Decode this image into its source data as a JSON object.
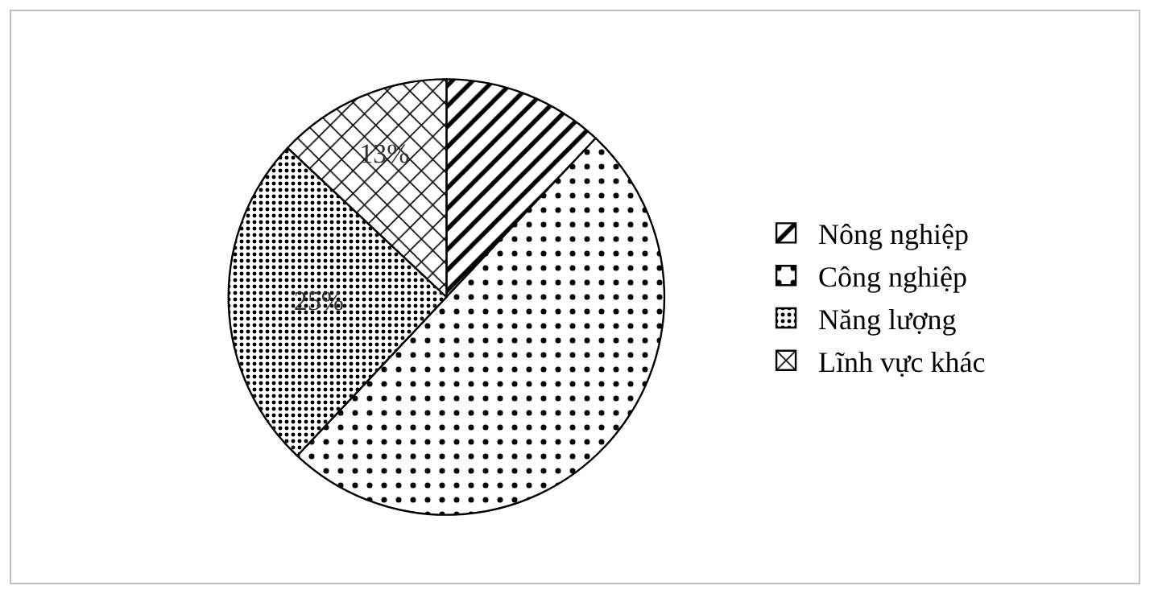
{
  "chart_data": {
    "type": "pie",
    "categories": [
      "Nông nghiệp",
      "Công nghiệp",
      "Năng lượng",
      "Lĩnh vực khác"
    ],
    "values": [
      12,
      50,
      25,
      13
    ],
    "value_labels": [
      null,
      null,
      "25%",
      "13%"
    ],
    "colors": [
      "#000000",
      "#000000",
      "#000000",
      "#000000"
    ],
    "legend": "right"
  }
}
